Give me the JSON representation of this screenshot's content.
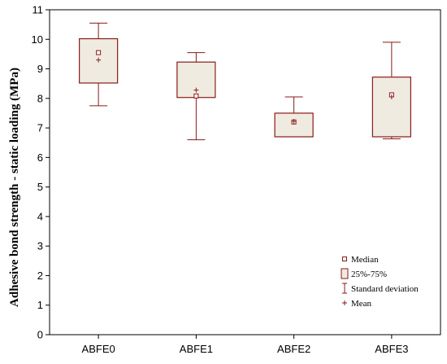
{
  "chart_data": {
    "type": "box",
    "title": "",
    "xlabel": "",
    "ylabel": "Adhesive bond strength - static loading (MPa)",
    "ylim": [
      0,
      11
    ],
    "yticks": [
      "0",
      "1",
      "2",
      "3",
      "4",
      "5",
      "6",
      "7",
      "8",
      "9",
      "10",
      "11"
    ],
    "categories": [
      "ABFE0",
      "ABFE1",
      "ABFE2",
      "ABFE3"
    ],
    "boxes": [
      {
        "median": 9.55,
        "mean": 9.3,
        "q1": 8.52,
        "q3": 10.02,
        "lower": 7.75,
        "upper": 10.55
      },
      {
        "median": 8.08,
        "mean": 8.28,
        "q1": 8.03,
        "q3": 9.23,
        "lower": 6.6,
        "upper": 9.55
      },
      {
        "median": 7.2,
        "mean": 7.22,
        "q1": 6.7,
        "q3": 7.5,
        "lower": 6.7,
        "upper": 8.05
      },
      {
        "median": 8.12,
        "mean": 8.05,
        "q1": 6.7,
        "q3": 8.72,
        "lower": 6.63,
        "upper": 9.9
      }
    ],
    "legend": {
      "position": "bottom-right",
      "items": [
        "Median",
        "25%-75%",
        "Standard deviation",
        "Mean"
      ]
    },
    "colors": {
      "box_fill": "#efebe0",
      "box_stroke": "#8b1a1a",
      "axis": "#000000"
    }
  }
}
